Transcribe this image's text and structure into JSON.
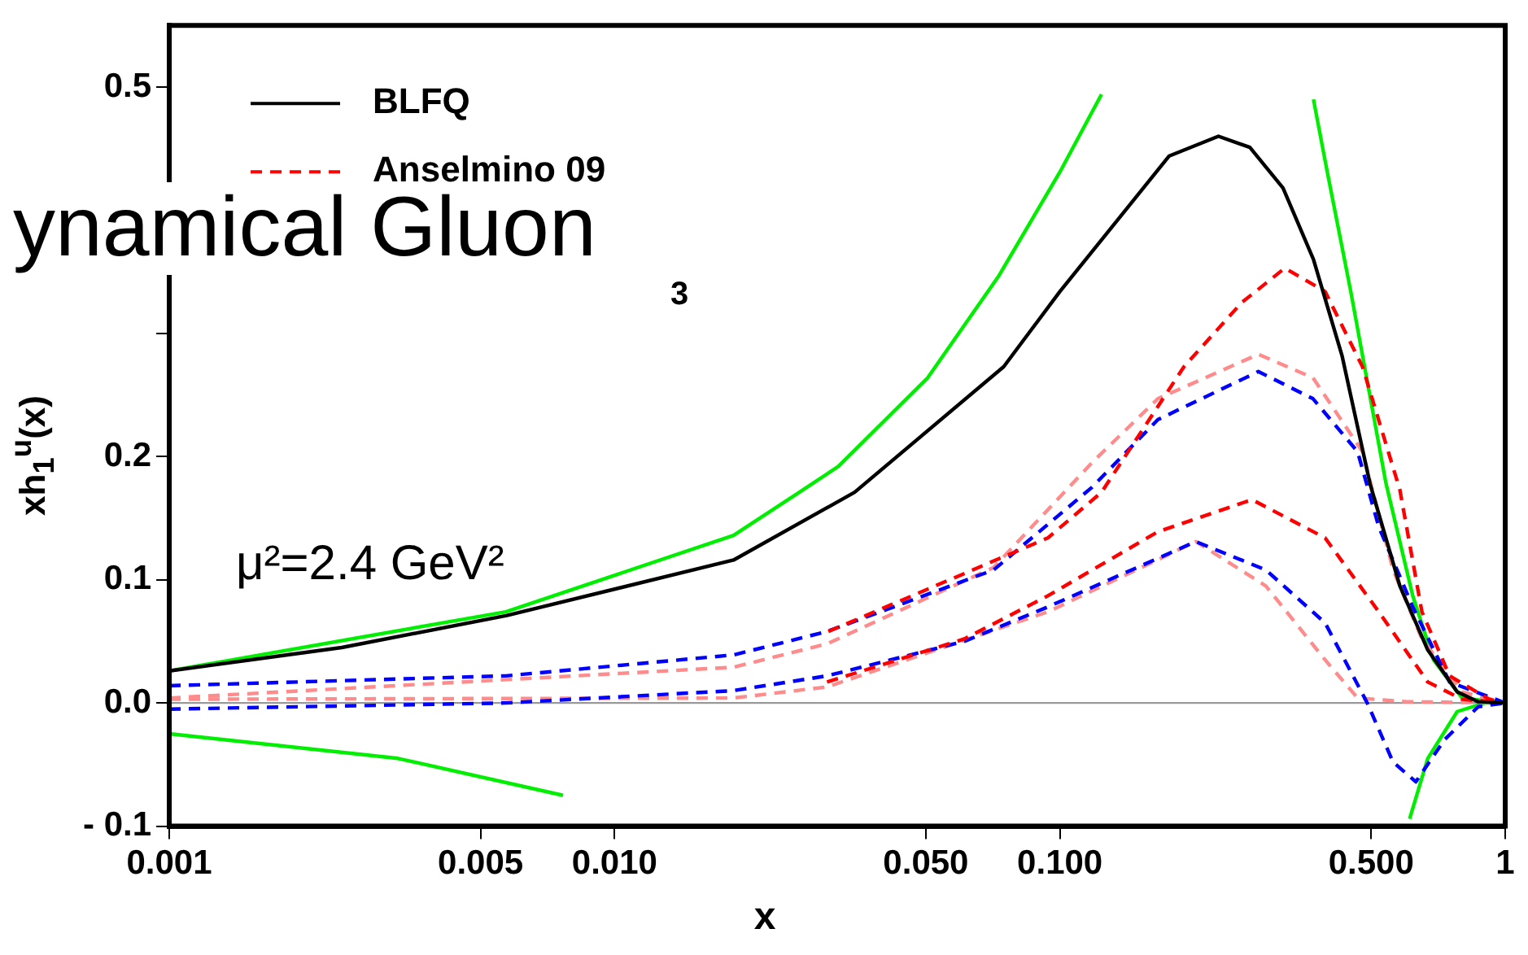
{
  "chart_data": {
    "type": "line",
    "xlabel": "x",
    "ylabel": "xh$_{1}$$^{u}$(x)",
    "log": "x",
    "xlim": [
      0.001,
      1
    ],
    "ylim": [
      -0.1,
      0.55
    ],
    "xticks": [
      0.001,
      0.005,
      {
        "value": 0.01,
        "label": "0.010"
      },
      {
        "value": 0.05,
        "label": "0.050"
      },
      {
        "value": 0.1,
        "label": "0.100"
      },
      {
        "value": 0.5,
        "label": "0.500"
      },
      1
    ],
    "yticks": [
      {
        "value": -0.1,
        "label": "- 0.1"
      },
      {
        "value": 0,
        "label": "0.0"
      },
      0.1,
      0.2,
      {
        "value": 0.3,
        "label": null
      },
      {
        "value": 0.4,
        "label": null
      },
      0.5
    ],
    "grid": false,
    "legend": "top left",
    "marker": "none",
    "annotations": [
      "μ²=2.4 GeV²",
      "ynamical Gluon",
      "3"
    ],
    "ref_lines": [
      {
        "axis": "y",
        "value": 0,
        "color": "#999999"
      }
    ],
    "series": [
      {
        "name": "BLFQ",
        "color": "#000000",
        "line_style": "solid",
        "x": [
          0.001,
          0.00244,
          0.00573,
          0.0185,
          0.0346,
          0.0748,
          0.1,
          0.176,
          0.227,
          0.267,
          0.317,
          0.371,
          0.43,
          0.497,
          0.58,
          0.67,
          0.78,
          0.87,
          1
        ],
        "values": [
          0.026,
          0.045,
          0.071,
          0.116,
          0.171,
          0.273,
          0.334,
          0.444,
          0.46,
          0.451,
          0.418,
          0.36,
          0.282,
          0.178,
          0.095,
          0.043,
          0.009,
          0.001,
          0
        ]
      },
      {
        "name": "Anselmino 09",
        "color": "#ff0000",
        "line_style": "dashed",
        "x": [
          0.0302,
          0.094,
          0.124,
          0.19,
          0.256,
          0.32,
          0.394,
          0.478,
          0.58,
          0.65,
          0.75,
          0.92,
          1
        ],
        "values": [
          0.058,
          0.134,
          0.171,
          0.273,
          0.325,
          0.353,
          0.334,
          0.273,
          0.173,
          0.074,
          0.022,
          0.003,
          0
        ]
      },
      {
        "color": "#ff0000",
        "line_style": "dashed",
        "x": [
          0.03,
          0.061,
          0.094,
          0.166,
          0.27,
          0.394,
          0.52,
          0.67,
          0.8,
          1
        ],
        "values": [
          0.017,
          0.052,
          0.087,
          0.139,
          0.165,
          0.134,
          0.074,
          0.017,
          0.003,
          0
        ]
      },
      {
        "color": "#0000ff",
        "line_style": "dashed",
        "x": [
          0.001,
          0.0057,
          0.0185,
          0.03,
          0.071,
          0.118,
          0.166,
          0.279,
          0.37,
          0.466,
          0.52,
          0.62,
          0.75,
          1
        ],
        "values": [
          0.014,
          0.022,
          0.039,
          0.058,
          0.108,
          0.175,
          0.23,
          0.269,
          0.247,
          0.204,
          0.143,
          0.078,
          0.017,
          0
        ]
      },
      {
        "color": "#0000ff",
        "line_style": "dashed",
        "x": [
          0.001,
          0.0057,
          0.0185,
          0.03,
          0.061,
          0.094,
          0.202,
          0.29,
          0.394,
          0.49,
          0.56,
          0.63,
          0.73,
          0.87,
          1
        ],
        "values": [
          -0.005,
          0,
          0.01,
          0.022,
          0.05,
          0.078,
          0.131,
          0.108,
          0.065,
          0,
          -0.048,
          -0.064,
          -0.03,
          -0.003,
          0
        ]
      },
      {
        "color": "#ff8c8c",
        "line_style": "dashed",
        "x": [
          0.001,
          0.0185,
          0.03,
          0.071,
          0.118,
          0.166,
          0.279,
          0.37,
          0.478,
          0.56,
          0.65,
          0.8,
          1
        ],
        "values": [
          0.004,
          0.029,
          0.048,
          0.11,
          0.195,
          0.247,
          0.283,
          0.264,
          0.204,
          0.108,
          0.052,
          0.009,
          0
        ]
      },
      {
        "color": "#ff8c8c",
        "line_style": "dashed",
        "x": [
          0.001,
          0.0185,
          0.03,
          0.094,
          0.202,
          0.29,
          0.394,
          0.466,
          0.6,
          1
        ],
        "values": [
          0.003,
          0.004,
          0.013,
          0.074,
          0.131,
          0.095,
          0.035,
          0.004,
          0.001,
          0
        ]
      },
      {
        "color": "#00ee00",
        "line_style": "solid",
        "x": [
          0.001,
          0.0057,
          0.0185,
          0.026,
          0.0318,
          0.0505,
          0.073,
          0.1,
          0.124,
          0.153,
          0.23,
          0.33,
          0.371,
          0.398,
          0.45,
          0.54,
          0.62,
          0.69,
          0.8,
          1
        ],
        "values": [
          0.026,
          0.074,
          0.136,
          0.171,
          0.192,
          0.264,
          0.347,
          0.431,
          0.494,
          null,
          null,
          null,
          0.49,
          0.432,
          0.334,
          0.178,
          0.087,
          0.035,
          0.004,
          0
        ]
      },
      {
        "color": "#00ee00",
        "line_style": "solid",
        "x": [
          0.001,
          0.00326,
          0.00766,
          0.0118,
          0.1,
          0.61,
          0.67,
          0.78,
          0.9,
          1
        ],
        "values": [
          -0.025,
          -0.045,
          -0.075,
          null,
          null,
          -0.094,
          -0.045,
          -0.007,
          0,
          0
        ]
      }
    ]
  }
}
